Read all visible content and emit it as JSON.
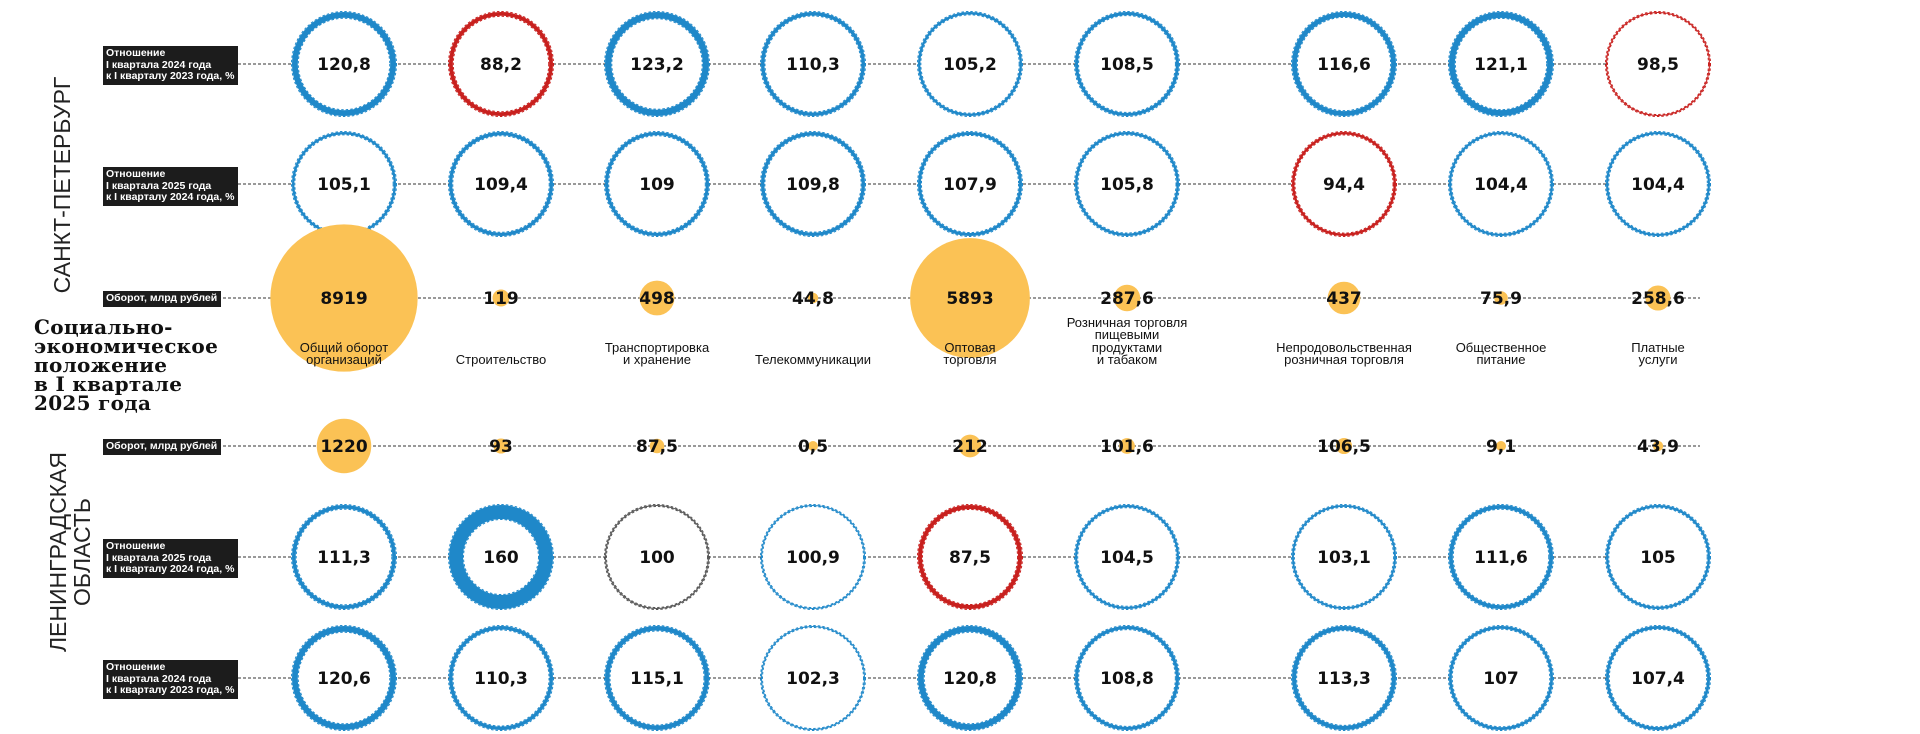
{
  "main_title": [
    "Социально-",
    "экономическое",
    "положение",
    "в I квартале",
    "2025 года"
  ],
  "regions": {
    "spb": "САНКТ-ПЕТЕРБУРГ",
    "lo": [
      "ЛЕНИНГРАДСКАЯ",
      "ОБЛАСТЬ"
    ]
  },
  "colors": {
    "growth": "#1f88c9",
    "decline": "#c8201e",
    "neutral": "#555555",
    "turnover": "#fbc255",
    "label_bg": "#1c1c1c"
  },
  "chart_data": {
    "type": "bubble",
    "categories": [
      [
        "Общий оборот",
        "организаций"
      ],
      [
        "Строительство"
      ],
      [
        "Транспортировка",
        "и хранение"
      ],
      [
        "Телекоммуникации"
      ],
      [
        "Оптовая",
        "торговля"
      ],
      [
        "Розничная торговля",
        "пищевыми",
        "продуктами",
        "и табаком"
      ],
      [
        "Непродовольственная",
        "розничная торговля"
      ],
      [
        "Общественное",
        "питание"
      ],
      [
        "Платные",
        "услуги"
      ]
    ],
    "rows": [
      {
        "region": "spb",
        "kind": "ratio",
        "label": [
          "Отношение",
          "I квартала 2024 года",
          "к I кварталу 2023 года, %"
        ],
        "values": [
          120.8,
          88.2,
          123.2,
          110.3,
          105.2,
          108.5,
          116.6,
          121.1,
          98.5
        ],
        "display": [
          "120,8",
          "88,2",
          "123,2",
          "110,3",
          "105,2",
          "108,5",
          "116,6",
          "121,1",
          "98,5"
        ]
      },
      {
        "region": "spb",
        "kind": "ratio",
        "label": [
          "Отношение",
          "I квартала 2025 года",
          "к I кварталу 2024 года, %"
        ],
        "values": [
          105.1,
          109.4,
          109,
          109.8,
          107.9,
          105.8,
          94.4,
          104.4,
          104.4
        ],
        "display": [
          "105,1",
          "109,4",
          "109",
          "109,8",
          "107,9",
          "105,8",
          "94,4",
          "104,4",
          "104,4"
        ]
      },
      {
        "region": "spb",
        "kind": "turnover",
        "label": [
          "Оборот, млрд рублей"
        ],
        "values": [
          8919,
          119,
          498,
          44.8,
          5893,
          287.6,
          437,
          75.9,
          258.6
        ],
        "display": [
          "8919",
          "119",
          "498",
          "44,8",
          "5893",
          "287,6",
          "437",
          "75,9",
          "258,6"
        ]
      },
      {
        "region": "lo",
        "kind": "turnover",
        "label": [
          "Оборот, млрд рублей"
        ],
        "values": [
          1220,
          93,
          87.5,
          0.5,
          212,
          101.6,
          106.5,
          9.1,
          43.9
        ],
        "display": [
          "1220",
          "93",
          "87,5",
          "0,5",
          "212",
          "101,6",
          "106,5",
          "9,1",
          "43,9"
        ]
      },
      {
        "region": "lo",
        "kind": "ratio",
        "label": [
          "Отношение",
          "I квартала 2025 года",
          "к I кварталу 2024 года, %"
        ],
        "values": [
          111.3,
          160,
          100,
          100.9,
          87.5,
          104.5,
          103.1,
          111.6,
          105
        ],
        "display": [
          "111,3",
          "160",
          "100",
          "100,9",
          "87,5",
          "104,5",
          "103,1",
          "111,6",
          "105"
        ]
      },
      {
        "region": "lo",
        "kind": "ratio",
        "label": [
          "Отношение",
          "I квартала 2024 года",
          "к I кварталу 2023 года, %"
        ],
        "values": [
          120.6,
          110.3,
          115.1,
          102.3,
          120.8,
          108.8,
          113.3,
          107,
          107.4
        ],
        "display": [
          "120,6",
          "110,3",
          "115,1",
          "102,3",
          "120,8",
          "108,8",
          "113,3",
          "107",
          "107,4"
        ]
      }
    ],
    "encoding": "Размер жёлтого круга соответствует обороту; толщина обводки - отклонению от 100%; синий - рост, красный - снижение"
  }
}
